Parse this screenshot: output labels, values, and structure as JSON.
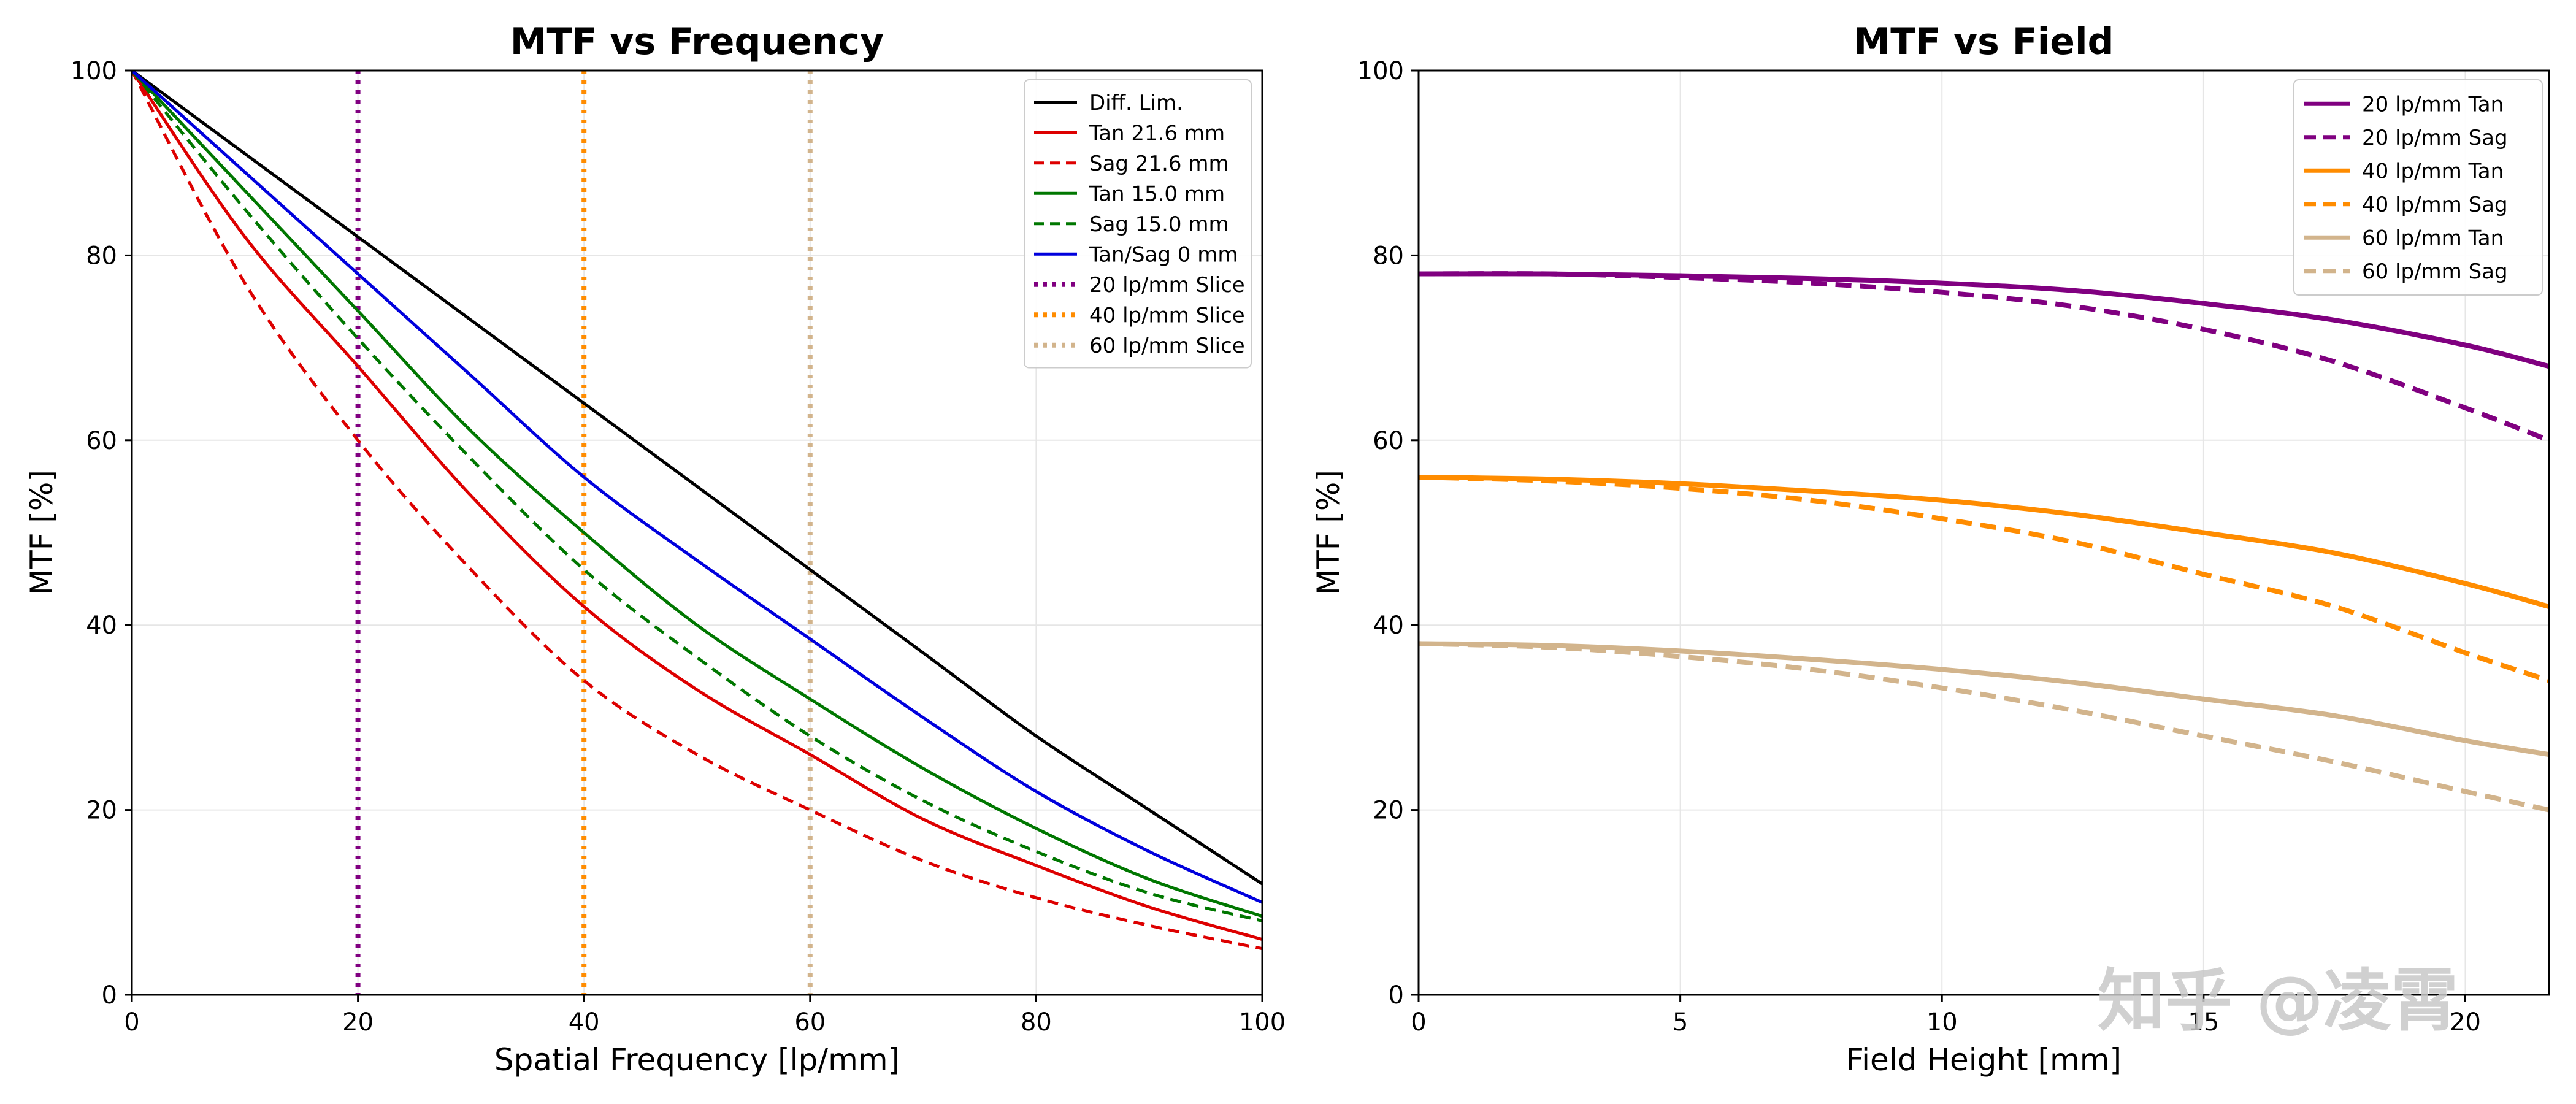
{
  "chart_data": [
    {
      "type": "line",
      "title": "MTF vs Frequency",
      "xlabel": "Spatial Frequency [lp/mm]",
      "ylabel": "MTF [%]",
      "xlim": [
        0,
        100
      ],
      "ylim": [
        0,
        100
      ],
      "xticks": [
        "0",
        "20",
        "40",
        "60",
        "80",
        "100"
      ],
      "yticks": [
        "0",
        "20",
        "40",
        "60",
        "80",
        "100"
      ],
      "grid": true,
      "legend_position": "top-right",
      "x": [
        0,
        10,
        20,
        30,
        40,
        50,
        60,
        70,
        80,
        90,
        100
      ],
      "series": [
        {
          "name": "Diff. Lim.",
          "color": "#000000",
          "style": "solid",
          "values": [
            100,
            91,
            82,
            73,
            64,
            55,
            46,
            37,
            28,
            20,
            12
          ]
        },
        {
          "name": "Tan 21.6 mm",
          "color": "#dd0000",
          "style": "solid",
          "values": [
            100,
            82,
            68,
            54,
            42,
            33,
            26,
            19,
            14,
            9.5,
            6
          ]
        },
        {
          "name": "Sag 21.6 mm",
          "color": "#dd0000",
          "style": "dashed",
          "values": [
            100,
            77,
            60,
            46,
            34,
            26,
            20,
            14.5,
            10.5,
            7.5,
            5
          ]
        },
        {
          "name": "Tan 15.0 mm",
          "color": "#007700",
          "style": "solid",
          "values": [
            100,
            87,
            74,
            61,
            50,
            40,
            32,
            24.5,
            18,
            12.5,
            8.5
          ]
        },
        {
          "name": "Sag 15.0 mm",
          "color": "#007700",
          "style": "dashed",
          "values": [
            100,
            85,
            71,
            58,
            46,
            36.5,
            28,
            21,
            15.5,
            11,
            8
          ]
        },
        {
          "name": "Tan/Sag 0 mm",
          "color": "#0000dd",
          "style": "solid",
          "values": [
            100,
            89,
            78,
            67,
            56,
            47,
            38.5,
            30,
            22,
            15.5,
            10
          ]
        }
      ],
      "vertical_lines": [
        {
          "name": "20 lp/mm Slice",
          "x": 20,
          "color": "#800080",
          "style": "dotted"
        },
        {
          "name": "40 lp/mm Slice",
          "x": 40,
          "color": "#ff8c00",
          "style": "dotted"
        },
        {
          "name": "60 lp/mm Slice",
          "x": 60,
          "color": "#d2b48c",
          "style": "dotted"
        }
      ]
    },
    {
      "type": "line",
      "title": "MTF vs Field",
      "xlabel": "Field Height [mm]",
      "ylabel": "MTF [%]",
      "xlim": [
        0,
        21.6
      ],
      "ylim": [
        0,
        100
      ],
      "xticks": [
        "0",
        "5",
        "10",
        "15",
        "20"
      ],
      "yticks": [
        "0",
        "20",
        "40",
        "60",
        "80",
        "100"
      ],
      "grid": true,
      "legend_position": "top-right",
      "x": [
        0,
        2.5,
        5,
        7.5,
        10,
        12.5,
        15,
        17.5,
        20,
        21.6
      ],
      "series": [
        {
          "name": "20 lp/mm Tan",
          "color": "#800080",
          "style": "solid",
          "values": [
            78,
            78,
            77.8,
            77.5,
            77,
            76.2,
            74.8,
            73,
            70.3,
            68
          ]
        },
        {
          "name": "20 lp/mm Sag",
          "color": "#800080",
          "style": "dashed",
          "values": [
            78,
            78,
            77.6,
            77,
            76,
            74.5,
            72,
            68.5,
            63.5,
            60
          ]
        },
        {
          "name": "40 lp/mm Tan",
          "color": "#ff8c00",
          "style": "solid",
          "values": [
            56,
            55.8,
            55.3,
            54.5,
            53.5,
            52,
            50,
            47.8,
            44.5,
            42
          ]
        },
        {
          "name": "40 lp/mm Sag",
          "color": "#ff8c00",
          "style": "dashed",
          "values": [
            56,
            55.6,
            54.8,
            53.5,
            51.5,
            49,
            45.5,
            42,
            37,
            34
          ]
        },
        {
          "name": "60 lp/mm Tan",
          "color": "#d2b48c",
          "style": "solid",
          "values": [
            38,
            37.8,
            37.2,
            36.3,
            35.2,
            33.8,
            32,
            30.2,
            27.5,
            26
          ]
        },
        {
          "name": "60 lp/mm Sag",
          "color": "#d2b48c",
          "style": "dashed",
          "values": [
            38,
            37.6,
            36.6,
            35.2,
            33.2,
            30.8,
            28,
            25.2,
            22,
            20
          ]
        }
      ]
    }
  ],
  "watermark": {
    "text": "知乎 @凌霄"
  }
}
